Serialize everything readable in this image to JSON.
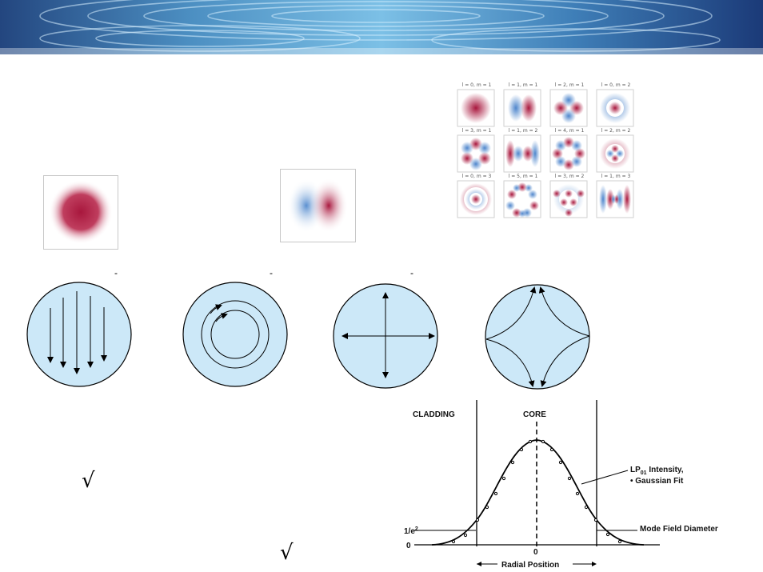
{
  "mode_grid": {
    "captions": [
      "l = 0, m = 1",
      "l = 1, m = 1",
      "l = 2, m = 1",
      "l = 0, m = 2",
      "l = 3, m = 1",
      "l = 1, m = 2",
      "l = 4, m = 1",
      "l = 2, m = 2",
      "l = 0, m = 3",
      "l = 5, m = 1",
      "l = 3, m = 2",
      "l = 1, m = 3"
    ]
  },
  "colors": {
    "positive_lobe": "#a8173d",
    "negative_lobe": "#5a8fd0",
    "core_fill": "#cce8f8",
    "banner_dark": "#1a3a7a",
    "banner_light": "#9fd4f0"
  },
  "field_diagrams": {
    "icons": [
      "parallel-field-icon",
      "circular-field-icon",
      "radial-field-icon",
      "hyperbolic-field-icon"
    ],
    "marks": [
      "-",
      "-",
      "-"
    ]
  },
  "radicals": [
    "√",
    "√"
  ],
  "profile_chart": {
    "cladding_label": "CLADDING",
    "core_label": "CORE",
    "intensity_label_1": "LP",
    "intensity_sub": "01",
    "intensity_label_2": " Intensity,",
    "fit_label": "• Gaussian Fit",
    "mfd_label": "Mode Field Diameter",
    "y_tick_top": "1/e",
    "y_tick_sup": "2",
    "y_tick_zero": "0",
    "x_tick_zero": "0",
    "x_label": "Radial Position"
  }
}
